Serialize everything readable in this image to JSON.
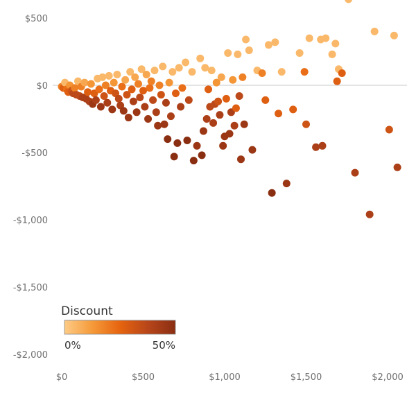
{
  "chart_data": {
    "type": "scatter",
    "title": "",
    "xlabel": "",
    "ylabel": "",
    "xlim": [
      -30,
      2030
    ],
    "ylim": [
      -2060,
      620
    ],
    "x_ticks": [
      {
        "value": 0,
        "label": "$0"
      },
      {
        "value": 500,
        "label": "$500"
      },
      {
        "value": 1000,
        "label": "$1,000"
      },
      {
        "value": 1500,
        "label": "$1,500"
      },
      {
        "value": 2000,
        "label": "$2,000"
      }
    ],
    "y_ticks": [
      {
        "value": 500,
        "label": "$500"
      },
      {
        "value": 0,
        "label": "$0"
      },
      {
        "value": -500,
        "label": "-$500"
      },
      {
        "value": -1000,
        "label": "-$1,000"
      },
      {
        "value": -1500,
        "label": "-$1,500"
      },
      {
        "value": -2000,
        "label": "-$2,000"
      }
    ],
    "zero_line": true,
    "grid": false,
    "legend": {
      "title": "Discount",
      "min_label": "0%",
      "max_label": "50%",
      "position": "bottom-left",
      "colors": [
        "#fdcb86",
        "#f59a3a",
        "#e6640f",
        "#b8461a",
        "#8a2e12"
      ]
    },
    "points": [
      [
        0,
        -10,
        0.2
      ],
      [
        10,
        -20,
        0.3
      ],
      [
        20,
        20,
        0.05
      ],
      [
        30,
        -30,
        0.25
      ],
      [
        40,
        -50,
        0.3
      ],
      [
        50,
        0,
        0.15
      ],
      [
        60,
        -40,
        0.35
      ],
      [
        70,
        -60,
        0.4
      ],
      [
        80,
        -20,
        0.2
      ],
      [
        90,
        -70,
        0.4
      ],
      [
        100,
        30,
        0.05
      ],
      [
        110,
        -80,
        0.4
      ],
      [
        120,
        -10,
        0.2
      ],
      [
        130,
        -90,
        0.45
      ],
      [
        140,
        20,
        0.1
      ],
      [
        150,
        -100,
        0.45
      ],
      [
        160,
        -50,
        0.3
      ],
      [
        170,
        -120,
        0.45
      ],
      [
        180,
        10,
        0.15
      ],
      [
        190,
        -140,
        0.5
      ],
      [
        200,
        -60,
        0.3
      ],
      [
        210,
        -110,
        0.45
      ],
      [
        220,
        50,
        0.05
      ],
      [
        230,
        -30,
        0.25
      ],
      [
        240,
        -160,
        0.5
      ],
      [
        250,
        60,
        0.05
      ],
      [
        260,
        -80,
        0.35
      ],
      [
        270,
        0,
        0.2
      ],
      [
        280,
        -130,
        0.45
      ],
      [
        290,
        70,
        0.05
      ],
      [
        300,
        -40,
        0.3
      ],
      [
        310,
        -180,
        0.5
      ],
      [
        320,
        20,
        0.15
      ],
      [
        330,
        -60,
        0.35
      ],
      [
        340,
        80,
        0.05
      ],
      [
        350,
        -100,
        0.4
      ],
      [
        360,
        -150,
        0.45
      ],
      [
        370,
        -10,
        0.25
      ],
      [
        380,
        -190,
        0.5
      ],
      [
        390,
        40,
        0.1
      ],
      [
        400,
        -70,
        0.35
      ],
      [
        410,
        -240,
        0.5
      ],
      [
        420,
        100,
        0.05
      ],
      [
        430,
        -30,
        0.3
      ],
      [
        440,
        -120,
        0.45
      ],
      [
        450,
        60,
        0.1
      ],
      [
        460,
        -200,
        0.5
      ],
      [
        470,
        10,
        0.2
      ],
      [
        480,
        -90,
        0.4
      ],
      [
        490,
        120,
        0.05
      ],
      [
        500,
        -40,
        0.3
      ],
      [
        510,
        -160,
        0.45
      ],
      [
        520,
        80,
        0.1
      ],
      [
        530,
        -250,
        0.5
      ],
      [
        540,
        -20,
        0.25
      ],
      [
        550,
        30,
        0.2
      ],
      [
        560,
        -110,
        0.4
      ],
      [
        570,
        110,
        0.05
      ],
      [
        580,
        -200,
        0.45
      ],
      [
        590,
        -300,
        0.5
      ],
      [
        600,
        0,
        0.2
      ],
      [
        610,
        -70,
        0.35
      ],
      [
        620,
        140,
        0.05
      ],
      [
        630,
        -290,
        0.5
      ],
      [
        640,
        -130,
        0.45
      ],
      [
        650,
        -400,
        0.55
      ],
      [
        660,
        20,
        0.15
      ],
      [
        670,
        -230,
        0.45
      ],
      [
        680,
        100,
        0.05
      ],
      [
        690,
        -530,
        0.55
      ],
      [
        700,
        -60,
        0.3
      ],
      [
        710,
        -430,
        0.55
      ],
      [
        720,
        130,
        0.05
      ],
      [
        730,
        -160,
        0.45
      ],
      [
        740,
        -20,
        0.25
      ],
      [
        760,
        170,
        0.05
      ],
      [
        770,
        -410,
        0.55
      ],
      [
        780,
        -110,
        0.4
      ],
      [
        800,
        100,
        0.05
      ],
      [
        810,
        -560,
        0.55
      ],
      [
        830,
        -450,
        0.5
      ],
      [
        850,
        200,
        0.05
      ],
      [
        860,
        -520,
        0.55
      ],
      [
        870,
        -340,
        0.5
      ],
      [
        880,
        130,
        0.05
      ],
      [
        890,
        -250,
        0.45
      ],
      [
        900,
        -30,
        0.3
      ],
      [
        910,
        -160,
        0.4
      ],
      [
        920,
        110,
        0.05
      ],
      [
        930,
        -280,
        0.45
      ],
      [
        940,
        -140,
        0.4
      ],
      [
        950,
        20,
        0.15
      ],
      [
        960,
        -120,
        0.35
      ],
      [
        970,
        -220,
        0.45
      ],
      [
        980,
        60,
        0.1
      ],
      [
        990,
        -450,
        0.5
      ],
      [
        1000,
        -380,
        0.5
      ],
      [
        1010,
        -100,
        0.3
      ],
      [
        1020,
        240,
        0.05
      ],
      [
        1030,
        -360,
        0.5
      ],
      [
        1040,
        -200,
        0.45
      ],
      [
        1050,
        40,
        0.15
      ],
      [
        1060,
        -300,
        0.45
      ],
      [
        1070,
        -170,
        0.3
      ],
      [
        1080,
        230,
        0.05
      ],
      [
        1090,
        -80,
        0.4
      ],
      [
        1100,
        -550,
        0.5
      ],
      [
        1110,
        60,
        0.2
      ],
      [
        1120,
        -290,
        0.5
      ],
      [
        1130,
        340,
        0.05
      ],
      [
        1150,
        260,
        0.05
      ],
      [
        1170,
        -480,
        0.5
      ],
      [
        1200,
        110,
        0.05
      ],
      [
        1230,
        90,
        0.2
      ],
      [
        1250,
        -110,
        0.3
      ],
      [
        1270,
        300,
        0.05
      ],
      [
        1290,
        -800,
        0.55
      ],
      [
        1310,
        320,
        0.05
      ],
      [
        1330,
        -210,
        0.3
      ],
      [
        1350,
        100,
        0.05
      ],
      [
        1380,
        -730,
        0.5
      ],
      [
        1420,
        -180,
        0.3
      ],
      [
        1460,
        240,
        0.05
      ],
      [
        1490,
        100,
        0.25
      ],
      [
        1500,
        -290,
        0.35
      ],
      [
        1520,
        350,
        0.05
      ],
      [
        1560,
        -460,
        0.45
      ],
      [
        1590,
        340,
        0.05
      ],
      [
        1600,
        -450,
        0.45
      ],
      [
        1620,
        350,
        0.05
      ],
      [
        1660,
        230,
        0.05
      ],
      [
        1680,
        310,
        0.05
      ],
      [
        1690,
        30,
        0.3
      ],
      [
        1700,
        120,
        0.05
      ],
      [
        1720,
        90,
        0.3
      ],
      [
        1760,
        640,
        0.05
      ],
      [
        1800,
        -650,
        0.45
      ],
      [
        1890,
        -960,
        0.45
      ],
      [
        1920,
        400,
        0.05
      ],
      [
        2010,
        -330,
        0.35
      ],
      [
        2040,
        370,
        0.05
      ],
      [
        2060,
        -610,
        0.45
      ]
    ]
  }
}
